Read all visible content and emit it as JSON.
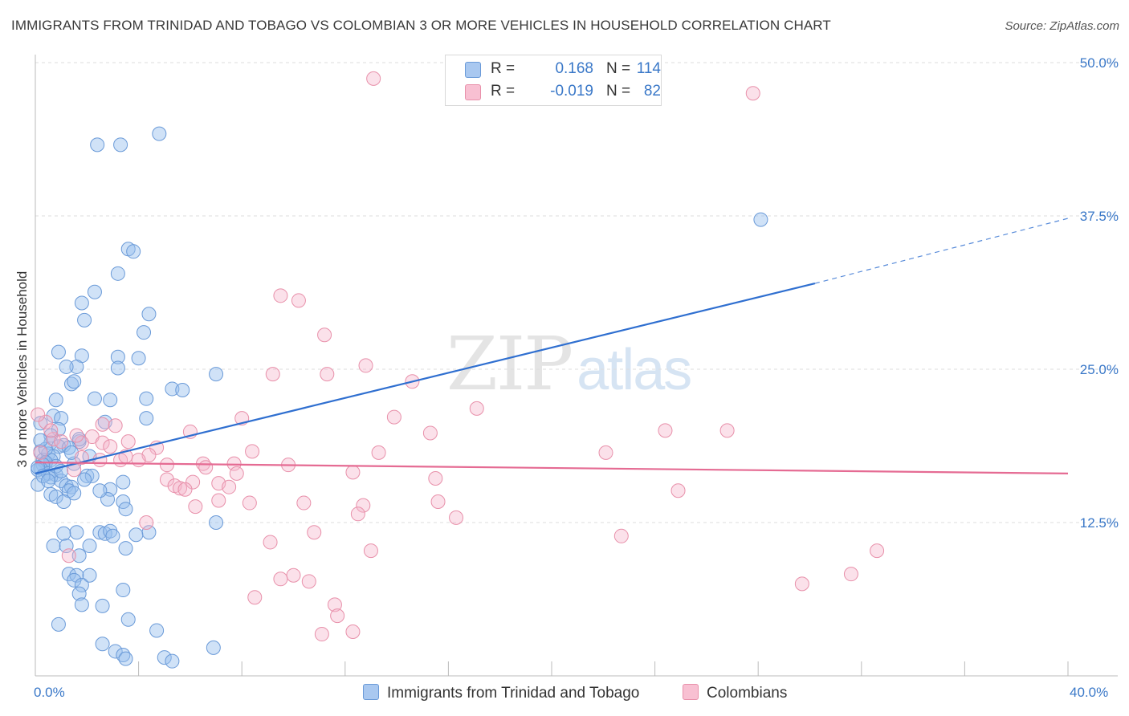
{
  "title": "IMMIGRANTS FROM TRINIDAD AND TOBAGO VS COLOMBIAN 3 OR MORE VEHICLES IN HOUSEHOLD CORRELATION CHART",
  "source": "Source: ZipAtlas.com",
  "watermark": {
    "zip": "ZIP",
    "atlas": "atlas"
  },
  "legend": {
    "rows": [
      {
        "r_label": "R =",
        "r_value": "0.168",
        "n_label": "N =",
        "n_value": "114",
        "color": "#a9c8f0",
        "border": "#6a9ad8"
      },
      {
        "r_label": "R =",
        "r_value": "-0.019",
        "n_label": "N =",
        "n_value": "82",
        "color": "#f8c0d2",
        "border": "#e890aa"
      }
    ]
  },
  "bottom_legend": [
    {
      "label": "Immigrants from Trinidad and Tobago",
      "color": "#a9c8f0",
      "border": "#6a9ad8"
    },
    {
      "label": "Colombians",
      "color": "#f8c0d2",
      "border": "#e890aa"
    }
  ],
  "colors": {
    "blue_line": "#2f6fd0",
    "pink_line": "#e56b93",
    "blue_fill": "rgba(150,190,238,0.45)",
    "blue_stroke": "#6a9ad8",
    "pink_fill": "rgba(246,180,203,0.40)",
    "pink_stroke": "#e890aa",
    "grid": "#dddddd",
    "tick_text": "#3a78c8"
  },
  "chart_data": {
    "type": "scatter",
    "title": "IMMIGRANTS FROM TRINIDAD AND TOBAGO VS COLOMBIAN 3 OR MORE VEHICLES IN HOUSEHOLD CORRELATION CHART",
    "xlabel": "",
    "ylabel": "3 or more Vehicles in Household",
    "xlim": [
      0,
      40
    ],
    "ylim": [
      0,
      50
    ],
    "x_tick_labels": [
      "0.0%",
      "40.0%"
    ],
    "y_ticks": [
      12.5,
      25.0,
      37.5,
      50.0
    ],
    "y_tick_labels": [
      "12.5%",
      "25.0%",
      "37.5%",
      "50.0%"
    ],
    "grid": "horizontal dashed",
    "legend_placement": "top-center",
    "series": [
      {
        "name": "Immigrants from Trinidad and Tobago",
        "trend": {
          "x": [
            0,
            30.2
          ],
          "y": [
            16.5,
            32.0
          ],
          "dashed_extension": [
            30.2,
            40
          ],
          "dashed_end_y": 37.3
        },
        "points": [
          [
            2.4,
            43.3
          ],
          [
            3.3,
            43.3
          ],
          [
            4.8,
            44.2
          ],
          [
            28.1,
            37.2
          ],
          [
            3.6,
            34.8
          ],
          [
            3.8,
            34.6
          ],
          [
            3.2,
            32.8
          ],
          [
            2.3,
            31.3
          ],
          [
            1.8,
            30.4
          ],
          [
            4.4,
            29.5
          ],
          [
            1.9,
            29.0
          ],
          [
            4.2,
            28.0
          ],
          [
            0.9,
            26.4
          ],
          [
            1.8,
            26.1
          ],
          [
            4.0,
            25.9
          ],
          [
            3.2,
            26.0
          ],
          [
            3.2,
            25.1
          ],
          [
            1.6,
            25.2
          ],
          [
            1.2,
            25.2
          ],
          [
            7.0,
            24.6
          ],
          [
            1.4,
            23.8
          ],
          [
            1.5,
            24.0
          ],
          [
            5.3,
            23.4
          ],
          [
            5.7,
            23.3
          ],
          [
            0.8,
            22.5
          ],
          [
            2.3,
            22.6
          ],
          [
            2.9,
            22.5
          ],
          [
            4.3,
            22.6
          ],
          [
            0.7,
            21.2
          ],
          [
            4.3,
            21.0
          ],
          [
            2.7,
            20.7
          ],
          [
            1.0,
            21.0
          ],
          [
            0.2,
            20.6
          ],
          [
            0.9,
            20.1
          ],
          [
            0.6,
            19.6
          ],
          [
            1.7,
            19.1
          ],
          [
            0.6,
            19.0
          ],
          [
            1.7,
            19.3
          ],
          [
            1.1,
            18.8
          ],
          [
            0.9,
            18.7
          ],
          [
            1.3,
            18.6
          ],
          [
            0.2,
            18.3
          ],
          [
            0.5,
            18.1
          ],
          [
            0.7,
            17.9
          ],
          [
            0.3,
            17.6
          ],
          [
            0.6,
            17.6
          ],
          [
            0.4,
            17.4
          ],
          [
            1.5,
            17.3
          ],
          [
            0.3,
            17.2
          ],
          [
            0.2,
            16.9
          ],
          [
            0.1,
            16.8
          ],
          [
            0.5,
            16.5
          ],
          [
            0.8,
            16.4
          ],
          [
            0.6,
            16.2
          ],
          [
            2.0,
            16.3
          ],
          [
            2.2,
            16.3
          ],
          [
            1.0,
            15.9
          ],
          [
            1.2,
            15.5
          ],
          [
            3.4,
            15.8
          ],
          [
            0.1,
            15.6
          ],
          [
            1.4,
            15.4
          ],
          [
            1.3,
            15.1
          ],
          [
            2.9,
            15.2
          ],
          [
            0.6,
            14.8
          ],
          [
            1.5,
            14.9
          ],
          [
            0.8,
            14.6
          ],
          [
            1.1,
            14.2
          ],
          [
            2.8,
            14.4
          ],
          [
            3.4,
            14.2
          ],
          [
            3.5,
            13.6
          ],
          [
            7.0,
            12.5
          ],
          [
            1.6,
            11.7
          ],
          [
            2.5,
            11.7
          ],
          [
            2.7,
            11.6
          ],
          [
            2.9,
            11.8
          ],
          [
            1.1,
            11.6
          ],
          [
            3.0,
            11.4
          ],
          [
            4.4,
            11.7
          ],
          [
            3.9,
            11.5
          ],
          [
            2.1,
            10.6
          ],
          [
            0.7,
            10.6
          ],
          [
            1.2,
            10.6
          ],
          [
            3.5,
            10.4
          ],
          [
            1.7,
            9.8
          ],
          [
            1.3,
            8.3
          ],
          [
            1.6,
            8.2
          ],
          [
            2.1,
            8.2
          ],
          [
            1.5,
            7.8
          ],
          [
            1.8,
            7.4
          ],
          [
            3.4,
            7.0
          ],
          [
            1.7,
            6.7
          ],
          [
            1.8,
            5.8
          ],
          [
            2.6,
            5.7
          ],
          [
            3.6,
            4.6
          ],
          [
            0.9,
            4.2
          ],
          [
            4.7,
            3.7
          ],
          [
            2.6,
            2.6
          ],
          [
            3.1,
            2.0
          ],
          [
            3.4,
            1.7
          ],
          [
            3.5,
            1.4
          ],
          [
            5.0,
            1.5
          ],
          [
            5.3,
            1.2
          ],
          [
            6.9,
            2.3
          ],
          [
            0.1,
            17.0
          ],
          [
            0.4,
            18.5
          ],
          [
            0.8,
            17.1
          ],
          [
            1.4,
            18.2
          ],
          [
            2.1,
            17.9
          ],
          [
            0.2,
            19.2
          ],
          [
            1.0,
            16.7
          ],
          [
            0.3,
            16.3
          ],
          [
            1.9,
            16.0
          ],
          [
            2.5,
            15.1
          ],
          [
            0.5,
            15.9
          ]
        ]
      },
      {
        "name": "Colombians",
        "trend": {
          "x": [
            0,
            40
          ],
          "y": [
            17.4,
            16.5
          ]
        },
        "points": [
          [
            13.1,
            48.7
          ],
          [
            27.8,
            47.5
          ],
          [
            9.5,
            31.0
          ],
          [
            10.2,
            30.6
          ],
          [
            11.2,
            27.8
          ],
          [
            9.2,
            24.6
          ],
          [
            11.3,
            24.6
          ],
          [
            12.8,
            25.3
          ],
          [
            14.6,
            24.0
          ],
          [
            13.9,
            21.1
          ],
          [
            17.1,
            21.8
          ],
          [
            8.0,
            21.0
          ],
          [
            0.4,
            20.7
          ],
          [
            2.6,
            20.5
          ],
          [
            3.1,
            20.4
          ],
          [
            6.0,
            19.9
          ],
          [
            15.3,
            19.8
          ],
          [
            24.4,
            20.0
          ],
          [
            26.8,
            20.0
          ],
          [
            2.2,
            19.5
          ],
          [
            0.7,
            19.3
          ],
          [
            1.0,
            19.1
          ],
          [
            1.8,
            19.0
          ],
          [
            2.6,
            19.0
          ],
          [
            3.6,
            19.1
          ],
          [
            4.7,
            18.6
          ],
          [
            8.4,
            18.3
          ],
          [
            13.3,
            18.2
          ],
          [
            22.1,
            18.2
          ],
          [
            4.4,
            18.0
          ],
          [
            1.8,
            17.8
          ],
          [
            2.5,
            17.6
          ],
          [
            3.3,
            17.6
          ],
          [
            4.0,
            17.6
          ],
          [
            5.1,
            17.2
          ],
          [
            6.5,
            17.3
          ],
          [
            7.7,
            17.3
          ],
          [
            9.8,
            17.2
          ],
          [
            6.6,
            17.0
          ],
          [
            1.5,
            16.8
          ],
          [
            12.3,
            16.6
          ],
          [
            7.8,
            16.5
          ],
          [
            5.1,
            16.0
          ],
          [
            6.1,
            15.8
          ],
          [
            7.1,
            15.7
          ],
          [
            5.4,
            15.5
          ],
          [
            5.6,
            15.3
          ],
          [
            5.8,
            15.2
          ],
          [
            7.5,
            15.4
          ],
          [
            15.5,
            16.1
          ],
          [
            24.9,
            15.1
          ],
          [
            7.1,
            14.3
          ],
          [
            8.3,
            14.1
          ],
          [
            10.4,
            14.1
          ],
          [
            12.7,
            13.9
          ],
          [
            15.6,
            14.2
          ],
          [
            6.2,
            13.8
          ],
          [
            12.5,
            13.2
          ],
          [
            16.3,
            12.9
          ],
          [
            4.3,
            12.5
          ],
          [
            10.8,
            11.7
          ],
          [
            22.7,
            11.4
          ],
          [
            9.1,
            10.9
          ],
          [
            13.0,
            10.2
          ],
          [
            32.6,
            10.2
          ],
          [
            1.3,
            9.8
          ],
          [
            31.6,
            8.3
          ],
          [
            10.0,
            8.2
          ],
          [
            9.5,
            7.9
          ],
          [
            10.6,
            7.7
          ],
          [
            29.7,
            7.5
          ],
          [
            8.5,
            6.4
          ],
          [
            11.6,
            5.8
          ],
          [
            11.7,
            4.9
          ],
          [
            12.3,
            3.6
          ],
          [
            11.1,
            3.4
          ],
          [
            0.1,
            21.3
          ],
          [
            1.6,
            19.6
          ],
          [
            0.6,
            20.0
          ],
          [
            2.9,
            18.7
          ],
          [
            3.5,
            17.9
          ],
          [
            0.2,
            18.2
          ]
        ]
      }
    ]
  }
}
